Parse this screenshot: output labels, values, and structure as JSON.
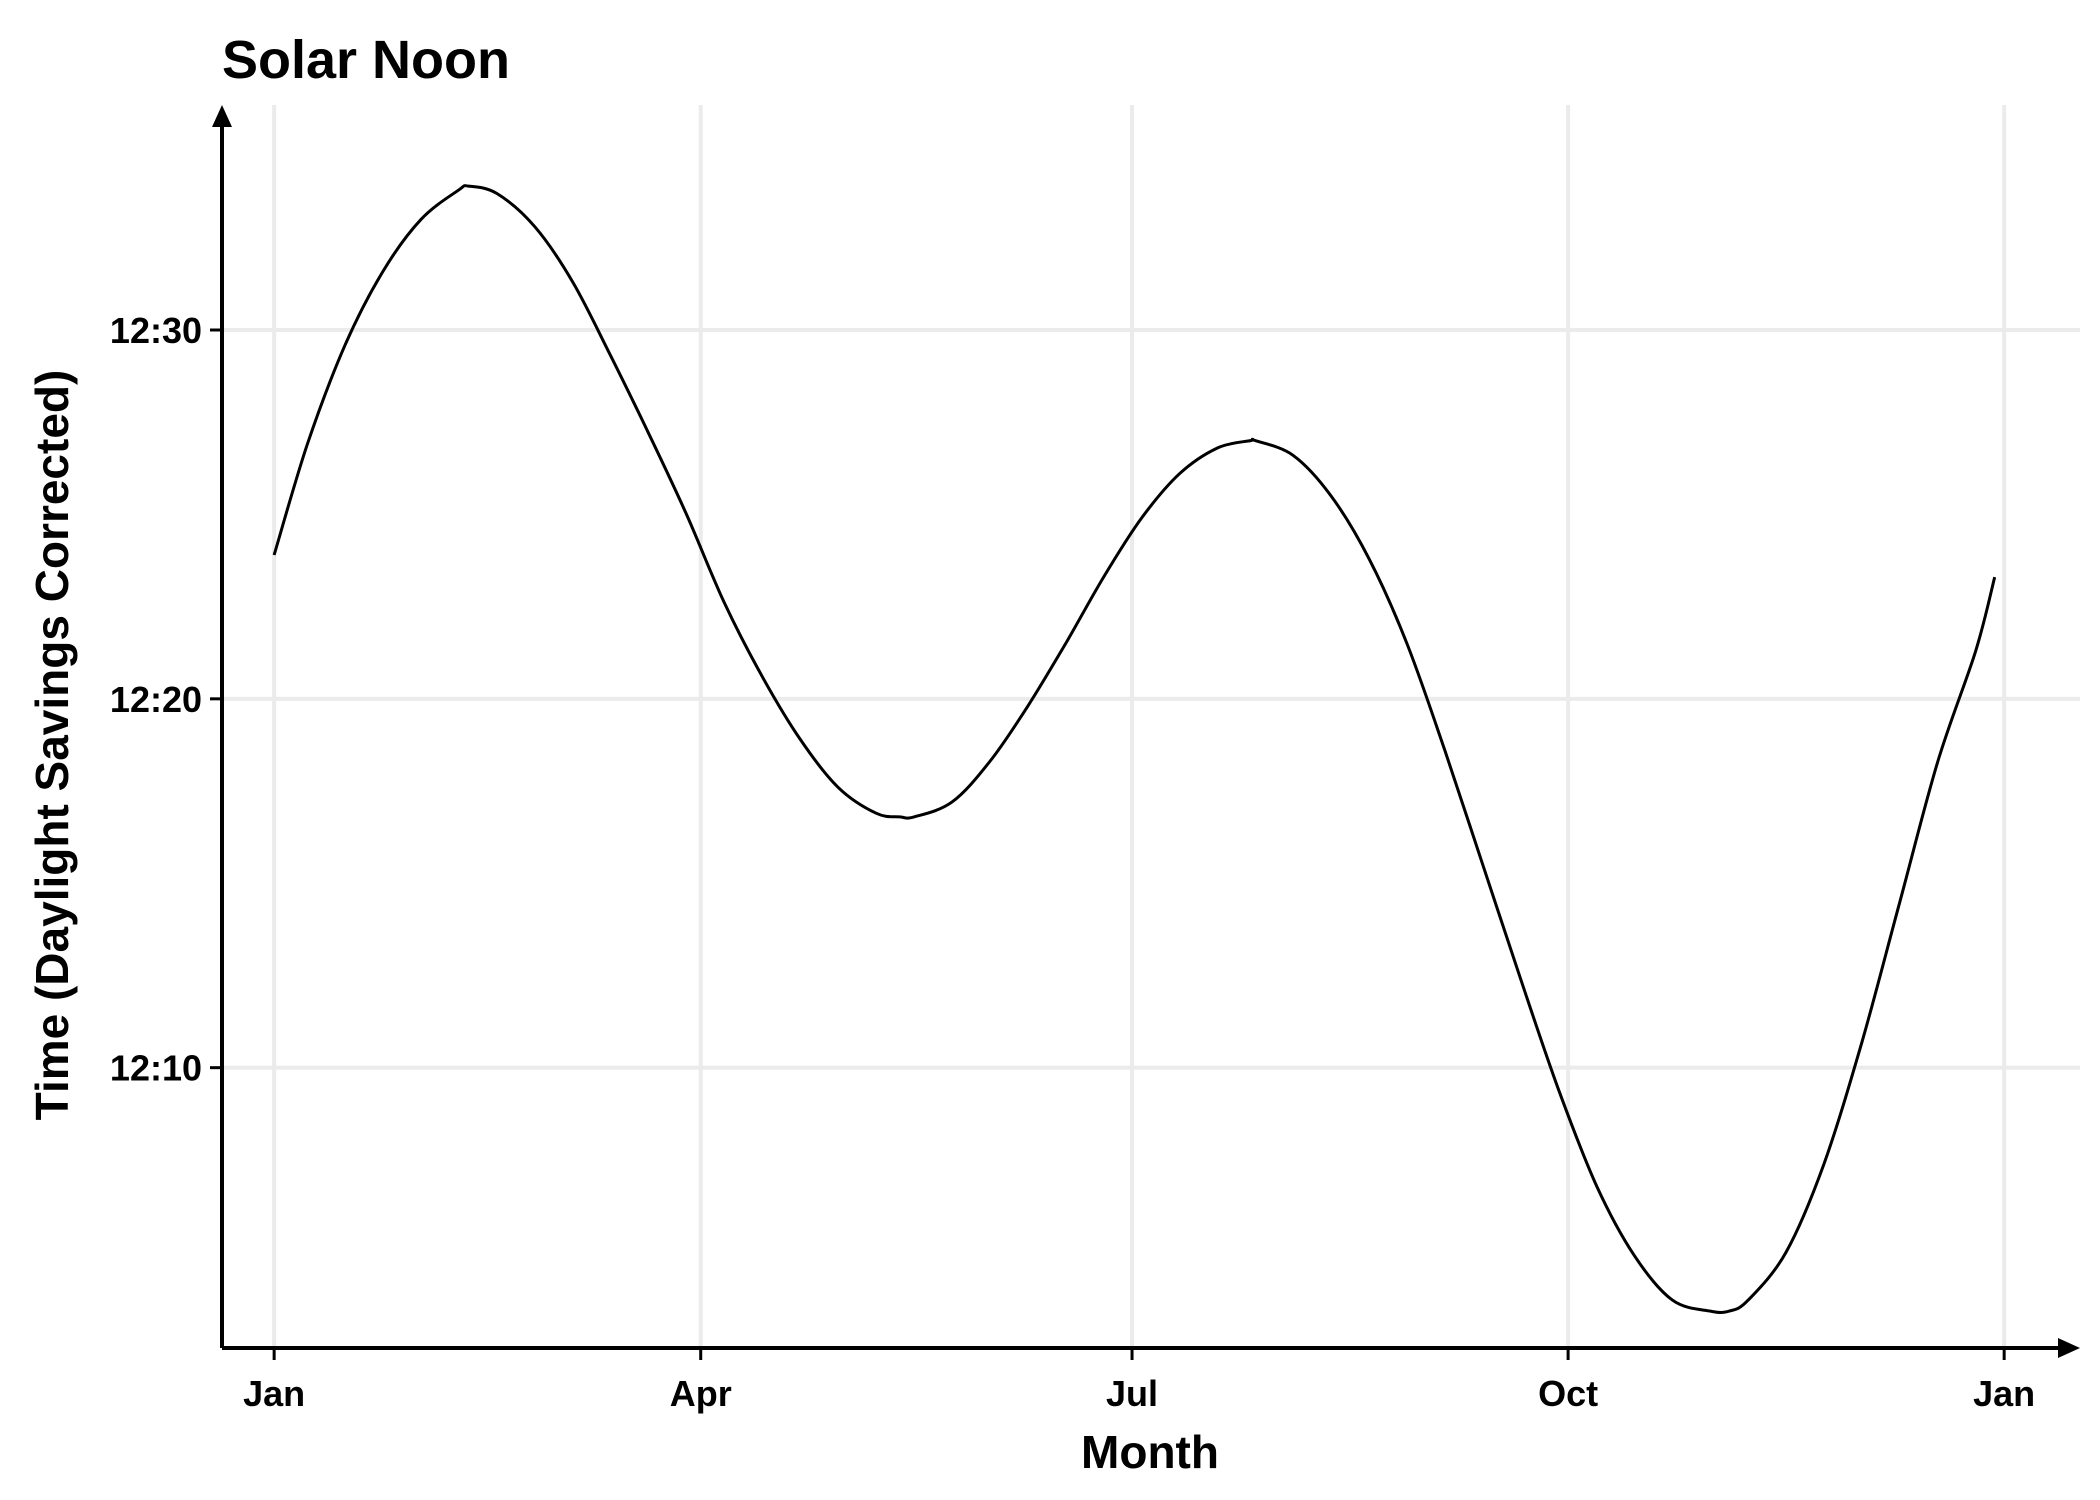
{
  "chart_data": {
    "type": "line",
    "title": "Solar Noon",
    "xlabel": "Month",
    "ylabel": "Time (Daylight Savings Corrected)",
    "x_tick_labels": [
      "Jan",
      "Apr",
      "Jul",
      "Oct",
      "Jan"
    ],
    "x_tick_days": [
      1,
      91,
      182,
      274,
      366
    ],
    "y_tick_labels": [
      "12:10",
      "12:20",
      "12:30"
    ],
    "y_tick_minutes": [
      10,
      20,
      30
    ],
    "xlim_days": [
      -10,
      382
    ],
    "ylim_minutes": [
      2.4,
      36.1
    ],
    "grid": true,
    "axis_arrows": true,
    "series": [
      {
        "color": "#000000",
        "x_days": [
          1,
          8,
          16,
          24,
          32,
          40,
          42,
          48,
          56,
          64,
          72,
          80,
          88,
          96,
          104,
          112,
          120,
          128,
          133,
          136,
          144,
          152,
          160,
          168,
          176,
          184,
          192,
          200,
          207,
          208,
          216,
          224,
          232,
          240,
          248,
          256,
          264,
          272,
          280,
          288,
          296,
          304,
          308,
          312,
          320,
          328,
          336,
          344,
          352,
          360,
          364
        ],
        "y_minutes": [
          23.9,
          26.9,
          29.6,
          31.6,
          33.0,
          33.8,
          33.9,
          33.7,
          32.8,
          31.3,
          29.3,
          27.2,
          25.0,
          22.6,
          20.6,
          18.9,
          17.6,
          16.9,
          16.8,
          16.8,
          17.2,
          18.3,
          19.8,
          21.5,
          23.3,
          24.9,
          26.1,
          26.8,
          27.0,
          27.0,
          26.6,
          25.5,
          23.8,
          21.5,
          18.6,
          15.5,
          12.4,
          9.4,
          6.8,
          4.9,
          3.7,
          3.4,
          3.4,
          3.7,
          5.0,
          7.4,
          10.7,
          14.5,
          18.3,
          21.3,
          23.3
        ]
      }
    ]
  }
}
